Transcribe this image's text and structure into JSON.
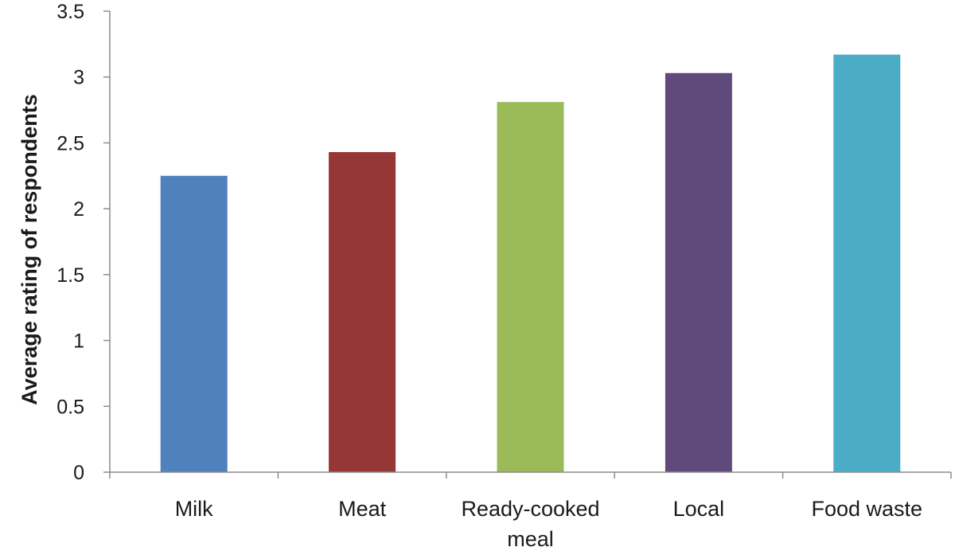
{
  "chart_data": {
    "type": "bar",
    "title": "",
    "xlabel": "",
    "ylabel": "Average rating of respondents",
    "ylim": [
      0,
      3.5
    ],
    "yticks": [
      "0",
      "0.5",
      "1",
      "1.5",
      "2",
      "2.5",
      "3",
      "3.5"
    ],
    "grid": false,
    "legend": "none",
    "categories": [
      [
        "Milk"
      ],
      [
        "Meat"
      ],
      [
        "Ready-cooked",
        "meal"
      ],
      [
        "Local"
      ],
      [
        "Food waste"
      ]
    ],
    "values": [
      2.25,
      2.43,
      2.81,
      3.03,
      3.17
    ],
    "colors": [
      "#4f81bd",
      "#953735",
      "#9bbb59",
      "#604a7b",
      "#4bacc6"
    ]
  }
}
